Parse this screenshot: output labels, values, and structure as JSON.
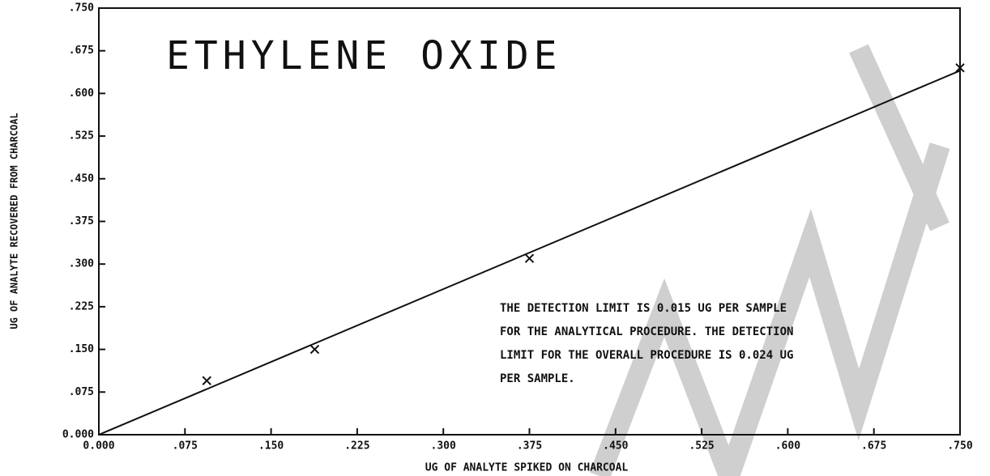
{
  "chart_data": {
    "type": "scatter",
    "title": "ETHYLENE OXIDE",
    "x_label": "UG OF ANALYTE SPIKED ON CHARCOAL",
    "y_label": "UG OF ANALYTE RECOVERED FROM CHARCOAL",
    "annotation": [
      "THE DETECTION LIMIT IS 0.015 UG PER SAMPLE",
      "FOR THE ANALYTICAL PROCEDURE.  THE DETECTION",
      "LIMIT FOR THE OVERALL PROCEDURE IS 0.024 UG",
      "PER SAMPLE."
    ],
    "x": [
      0.094,
      0.188,
      0.375,
      0.75
    ],
    "values": [
      0.095,
      0.15,
      0.31,
      0.645
    ],
    "color": "#111111",
    "fit_line": {
      "x": [
        0,
        0.75
      ],
      "y": [
        0,
        0.64
      ]
    },
    "xlim": [
      0,
      0.75
    ],
    "ylim": [
      0,
      0.75
    ],
    "xticks": [
      {
        "value": 0,
        "label": "0.000"
      },
      {
        "value": 0.075,
        "label": ".075"
      },
      {
        "value": 0.15,
        "label": ".150"
      },
      {
        "value": 0.225,
        "label": ".225"
      },
      {
        "value": 0.3,
        "label": ".300"
      },
      {
        "value": 0.375,
        "label": ".375"
      },
      {
        "value": 0.45,
        "label": ".450"
      },
      {
        "value": 0.525,
        "label": ".525"
      },
      {
        "value": 0.6,
        "label": ".600"
      },
      {
        "value": 0.675,
        "label": ".675"
      },
      {
        "value": 0.75,
        "label": ".750"
      }
    ],
    "yticks": [
      {
        "value": 0,
        "label": "0.000"
      },
      {
        "value": 0.075,
        "label": ".075"
      },
      {
        "value": 0.15,
        "label": ".150"
      },
      {
        "value": 0.225,
        "label": ".225"
      },
      {
        "value": 0.3,
        "label": ".300"
      },
      {
        "value": 0.375,
        "label": ".375"
      },
      {
        "value": 0.45,
        "label": ".450"
      },
      {
        "value": 0.525,
        "label": ".525"
      },
      {
        "value": 0.6,
        "label": ".600"
      },
      {
        "value": 0.675,
        "label": ".675"
      },
      {
        "value": 0.75,
        "label": ".750"
      }
    ]
  }
}
